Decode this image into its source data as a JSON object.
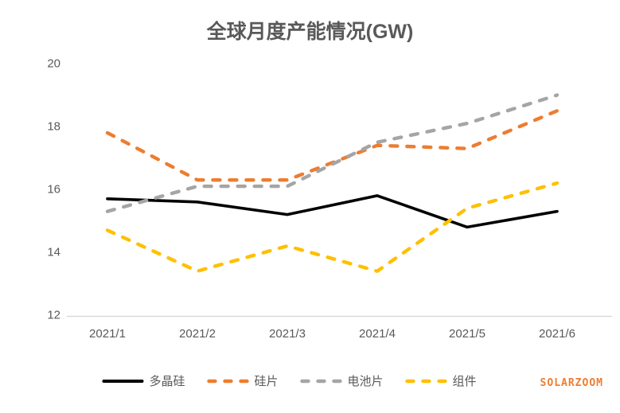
{
  "watermark": "SOLARZOOM",
  "colors": {
    "title_text": "#595959",
    "axis_label_text": "#595959",
    "axis_line": "#D9D9D9",
    "watermark_text": "#ED7D31",
    "background": "#FFFFFF"
  },
  "chart_data": {
    "type": "line",
    "title": "全球月度产能情况(GW)",
    "xlabel": "",
    "ylabel": "",
    "categories": [
      "2021/1",
      "2021/2",
      "2021/3",
      "2021/4",
      "2021/5",
      "2021/6"
    ],
    "series": [
      {
        "name": "多晶硅",
        "color": "#000000",
        "style": "solid",
        "values": [
          15.7,
          15.6,
          15.2,
          15.8,
          14.8,
          15.3
        ]
      },
      {
        "name": "硅片",
        "color": "#ED7D31",
        "style": "dashed",
        "values": [
          17.8,
          16.3,
          16.3,
          17.4,
          17.3,
          18.5
        ]
      },
      {
        "name": "电池片",
        "color": "#A5A5A5",
        "style": "dashed",
        "values": [
          15.3,
          16.1,
          16.1,
          17.5,
          18.1,
          19.0
        ]
      },
      {
        "name": "组件",
        "color": "#FFC000",
        "style": "dashed",
        "values": [
          14.7,
          13.4,
          14.2,
          13.4,
          15.4,
          16.2
        ]
      }
    ],
    "ylim": [
      12,
      20
    ],
    "yticks": [
      20,
      18,
      16,
      14,
      12
    ],
    "grid": false,
    "legend_position": "bottom"
  }
}
